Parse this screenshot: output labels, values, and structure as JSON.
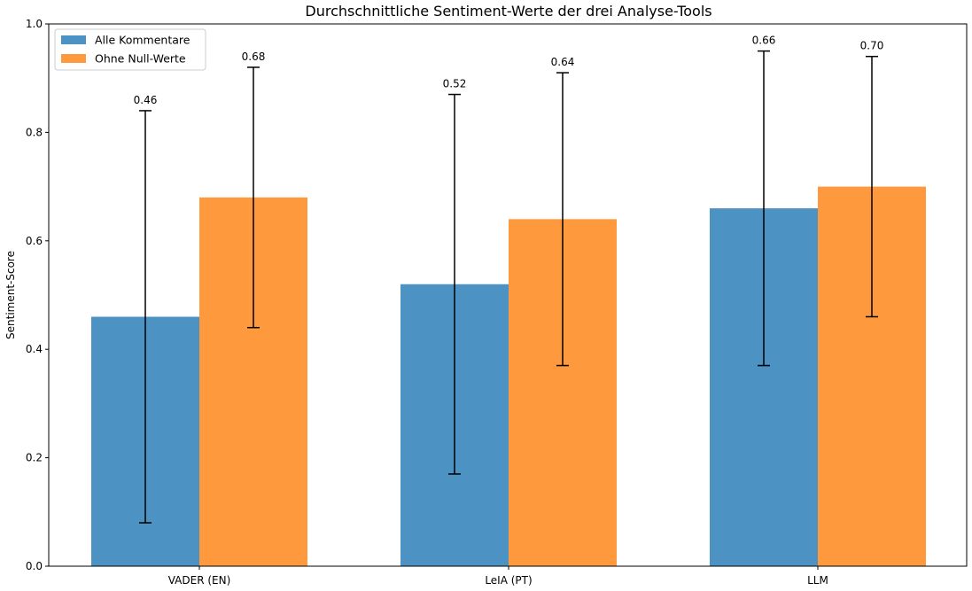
{
  "chart_data": {
    "type": "bar",
    "title": "Durchschnittliche Sentiment-Werte der drei Analyse-Tools",
    "xlabel": "",
    "ylabel": "Sentiment-Score",
    "categories": [
      "VADER (EN)",
      "LeIA (PT)",
      "LLM"
    ],
    "ylim": [
      0,
      1.0
    ],
    "yticks": [
      "0.0",
      "0.2",
      "0.4",
      "0.6",
      "0.8",
      "1.0"
    ],
    "grid": false,
    "legend_position": "top-left",
    "series": [
      {
        "name": "Alle Kommentare",
        "color": "#4c92c3",
        "values": [
          0.46,
          0.52,
          0.66
        ],
        "error_low": [
          0.08,
          0.17,
          0.37
        ],
        "error_high": [
          0.84,
          0.87,
          0.95
        ],
        "labels": [
          "0.46",
          "0.52",
          "0.66"
        ]
      },
      {
        "name": "Ohne Null-Werte",
        "color": "#ff993e",
        "values": [
          0.68,
          0.64,
          0.7
        ],
        "error_low": [
          0.44,
          0.37,
          0.46
        ],
        "error_high": [
          0.92,
          0.91,
          0.94
        ],
        "labels": [
          "0.68",
          "0.64",
          "0.70"
        ]
      }
    ]
  }
}
